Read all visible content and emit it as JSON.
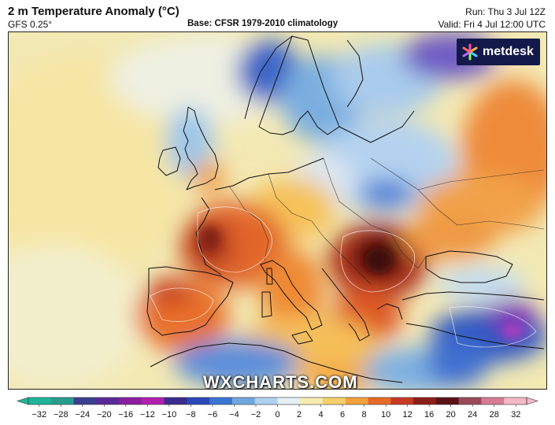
{
  "header": {
    "title": "2 m Temperature Anomaly (°C)",
    "model": "GFS 0.25°",
    "base": "Base: CFSR 1979-2010 climatology",
    "run": "Run: Thu 3 Jul 12Z",
    "valid": "Valid: Fri 4 Jul 12:00 UTC"
  },
  "brand": {
    "logo_text": "metdesk",
    "watermark": "WXCHARTS.COM"
  },
  "legend": {
    "ticks": [
      "−32",
      "−28",
      "−24",
      "−20",
      "−16",
      "−12",
      "−10",
      "−8",
      "−6",
      "−4",
      "−2",
      "0",
      "2",
      "4",
      "6",
      "8",
      "10",
      "12",
      "16",
      "20",
      "24",
      "28",
      "32"
    ],
    "colors": [
      "#1fb59a",
      "#2a9c8f",
      "#3a3f8f",
      "#5a2a9a",
      "#8a1fa0",
      "#b11fb0",
      "#3b2d8c",
      "#2a48b8",
      "#3a76d2",
      "#70a6e0",
      "#b0d0ee",
      "#e6eef6",
      "#f7ecb0",
      "#f6cf6c",
      "#f2a13c",
      "#e8692a",
      "#c83a24",
      "#8c1e1a",
      "#5a1216",
      "#9a4a5a",
      "#d57d95",
      "#f4b8c8"
    ]
  },
  "icons": {
    "logo_mark": "metdesk-logo-icon"
  }
}
